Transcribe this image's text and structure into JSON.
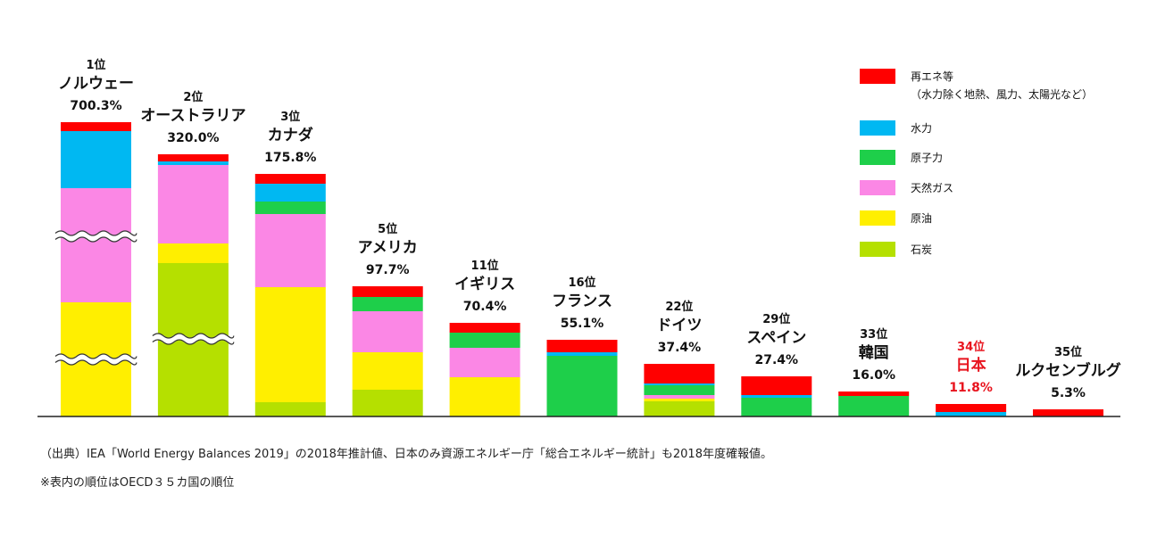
{
  "chart_data": {
    "type": "bar",
    "stacked": true,
    "axis_break": true,
    "series": [
      {
        "key": "coal",
        "name": "石炭",
        "color": "#b5e000"
      },
      {
        "key": "oil",
        "name": "原油",
        "color": "#ffef00"
      },
      {
        "key": "gas",
        "name": "天然ガス",
        "color": "#fb87e5"
      },
      {
        "key": "nuclear",
        "name": "原子力",
        "color": "#1ecf4a"
      },
      {
        "key": "hydro",
        "name": "水力",
        "color": "#00b8f2"
      },
      {
        "key": "renew",
        "name": "再エネ等",
        "name_line2": "（水力除く地熱、風力、太陽光など）",
        "color": "#ff0000"
      }
    ],
    "bars": [
      {
        "rank": "1位",
        "name": "ノルウェー",
        "total": "700.3%",
        "highlight": false,
        "segments": {
          "coal": 0,
          "oil": 128,
          "gas": 128,
          "nuclear": 0,
          "hydro": 64,
          "renew": 10
        }
      },
      {
        "rank": "2位",
        "name": "オーストラリア",
        "total": "320.0%",
        "highlight": false,
        "segments": {
          "coal": 172,
          "oil": 22,
          "gas": 88,
          "nuclear": 0,
          "hydro": 4,
          "renew": 8
        }
      },
      {
        "rank": "3位",
        "name": "カナダ",
        "total": "175.8%",
        "highlight": false,
        "segments": {
          "coal": 16,
          "oil": 129,
          "gas": 82,
          "nuclear": 14,
          "hydro": 20,
          "renew": 11
        }
      },
      {
        "rank": "5位",
        "name": "アメリカ",
        "total": "97.7%",
        "highlight": false,
        "segments": {
          "coal": 30,
          "oil": 42,
          "gas": 46,
          "nuclear": 16,
          "hydro": 0,
          "renew": 12
        }
      },
      {
        "rank": "11位",
        "name": "イギリス",
        "total": "70.4%",
        "highlight": false,
        "segments": {
          "coal": 0,
          "oil": 44,
          "gas": 33,
          "nuclear": 17,
          "hydro": 0,
          "renew": 11
        }
      },
      {
        "rank": "16位",
        "name": "フランス",
        "total": "55.1%",
        "highlight": false,
        "segments": {
          "coal": 0,
          "oil": 0,
          "gas": 0,
          "nuclear": 68,
          "hydro": 4,
          "renew": 14
        }
      },
      {
        "rank": "22位",
        "name": "ドイツ",
        "total": "37.4%",
        "highlight": false,
        "segments": {
          "coal": 17,
          "oil": 3,
          "gas": 4,
          "nuclear": 11,
          "hydro": 2,
          "renew": 22
        }
      },
      {
        "rank": "29位",
        "name": "スペイン",
        "total": "27.4%",
        "highlight": false,
        "segments": {
          "coal": 0,
          "oil": 0,
          "gas": 0,
          "nuclear": 21,
          "hydro": 3,
          "renew": 21
        }
      },
      {
        "rank": "33位",
        "name": "韓国",
        "total": "16.0%",
        "highlight": false,
        "segments": {
          "coal": 0,
          "oil": 0,
          "gas": 0,
          "nuclear": 23,
          "hydro": 0,
          "renew": 5
        }
      },
      {
        "rank": "34位",
        "name": "日本",
        "total": "11.8%",
        "highlight": true,
        "segments": {
          "coal": 0,
          "oil": 0,
          "gas": 0,
          "nuclear": 0,
          "hydro": 5,
          "renew": 9
        }
      },
      {
        "rank": "35位",
        "name": "ルクセンブルグ",
        "total": "5.3%",
        "highlight": false,
        "segments": {
          "coal": 0,
          "oil": 0,
          "gas": 0,
          "nuclear": 0,
          "hydro": 0,
          "renew": 8
        }
      }
    ],
    "break_marks": [
      {
        "bar": 0,
        "offset": 202
      },
      {
        "bar": 0,
        "offset": 64
      },
      {
        "bar": 1,
        "offset": 87
      }
    ],
    "highlight_color": "#e8141e"
  },
  "footnotes": {
    "source": "（出典）IEA「World Energy Balances 2019」の2018年推計値、日本のみ資源エネルギー庁「総合エネルギー統計」も2018年度確報値。",
    "note": "※表内の順位はOECD３５カ国の順位"
  }
}
